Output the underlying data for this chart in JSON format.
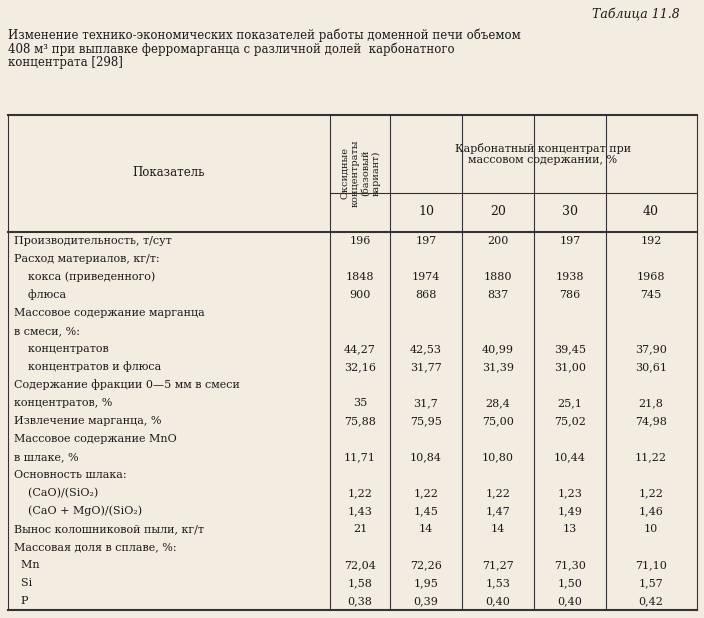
{
  "table_title": "Таблица 11.8",
  "caption_line1": "Изменение технико-экономических показателей работы доменной печи объемом",
  "caption_line2": "408 м³ при выплавке ферромарганца с различной долей  карбонатного",
  "caption_line3": "концентрата [298]",
  "col_header_1": "Оксидные\nконцентраты\n(базовый\nвариант)",
  "col_header_2": "Карбонатный концентрат при\nмассовом содержании, %",
  "col_sub": [
    "10",
    "20",
    "30",
    "40"
  ],
  "row_label_col": "Показатель",
  "rows": [
    {
      "label": "Производительность, т/сут",
      "indent": 0,
      "values": [
        "196",
        "197",
        "200",
        "197",
        "192"
      ]
    },
    {
      "label": "Расход материалов, кг/т:",
      "indent": 0,
      "values": [
        "",
        "",
        "",
        "",
        ""
      ]
    },
    {
      "label": "    кокса (приведенного)",
      "indent": 0,
      "values": [
        "1848",
        "1974",
        "1880",
        "1938",
        "1968"
      ]
    },
    {
      "label": "    флюса",
      "indent": 0,
      "values": [
        "900",
        "868",
        "837",
        "786",
        "745"
      ]
    },
    {
      "label": "Массовое содержание марганца",
      "indent": 0,
      "values": [
        "",
        "",
        "",
        "",
        ""
      ]
    },
    {
      "label": "в смеси, %:",
      "indent": 0,
      "values": [
        "",
        "",
        "",
        "",
        ""
      ]
    },
    {
      "label": "    концентратов",
      "indent": 0,
      "values": [
        "44,27",
        "42,53",
        "40,99",
        "39,45",
        "37,90"
      ]
    },
    {
      "label": "    концентратов и флюса",
      "indent": 0,
      "values": [
        "32,16",
        "31,77",
        "31,39",
        "31,00",
        "30,61"
      ]
    },
    {
      "label": "Содержание фракции 0—5 мм в смеси",
      "indent": 0,
      "values": [
        "",
        "",
        "",
        "",
        ""
      ]
    },
    {
      "label": "концентратов, %",
      "indent": 0,
      "values": [
        "35",
        "31,7",
        "28,4",
        "25,1",
        "21,8"
      ]
    },
    {
      "label": "Извлечение марганца, %",
      "indent": 0,
      "values": [
        "75,88",
        "75,95",
        "75,00",
        "75,02",
        "74,98"
      ]
    },
    {
      "label": "Массовое содержание MnO",
      "indent": 0,
      "values": [
        "",
        "",
        "",
        "",
        ""
      ]
    },
    {
      "label": "в шлаке, %",
      "indent": 0,
      "values": [
        "11,71",
        "10,84",
        "10,80",
        "10,44",
        "11,22"
      ]
    },
    {
      "label": "Основность шлака:",
      "indent": 0,
      "values": [
        "",
        "",
        "",
        "",
        ""
      ]
    },
    {
      "label": "    (CaO)/(SiO₂)",
      "indent": 0,
      "values": [
        "1,22",
        "1,22",
        "1,22",
        "1,23",
        "1,22"
      ]
    },
    {
      "label": "    (CaO + MgO)/(SiO₂)",
      "indent": 0,
      "values": [
        "1,43",
        "1,45",
        "1,47",
        "1,49",
        "1,46"
      ]
    },
    {
      "label": "Вынос колошниковой пыли, кг/т",
      "indent": 0,
      "values": [
        "21",
        "14",
        "14",
        "13",
        "10"
      ]
    },
    {
      "label": "Массовая доля в сплаве, %:",
      "indent": 0,
      "values": [
        "",
        "",
        "",
        "",
        ""
      ]
    },
    {
      "label": "  Mn",
      "indent": 0,
      "values": [
        "72,04",
        "72,26",
        "71,27",
        "71,30",
        "71,10"
      ]
    },
    {
      "label": "  Si",
      "indent": 0,
      "values": [
        "1,58",
        "1,95",
        "1,53",
        "1,50",
        "1,57"
      ]
    },
    {
      "label": "  P",
      "indent": 0,
      "values": [
        "0,38",
        "0,39",
        "0,40",
        "0,40",
        "0,42"
      ]
    }
  ],
  "bg_color": "#f2ede0",
  "text_color": "#1a1a1a",
  "line_color": "#333333"
}
